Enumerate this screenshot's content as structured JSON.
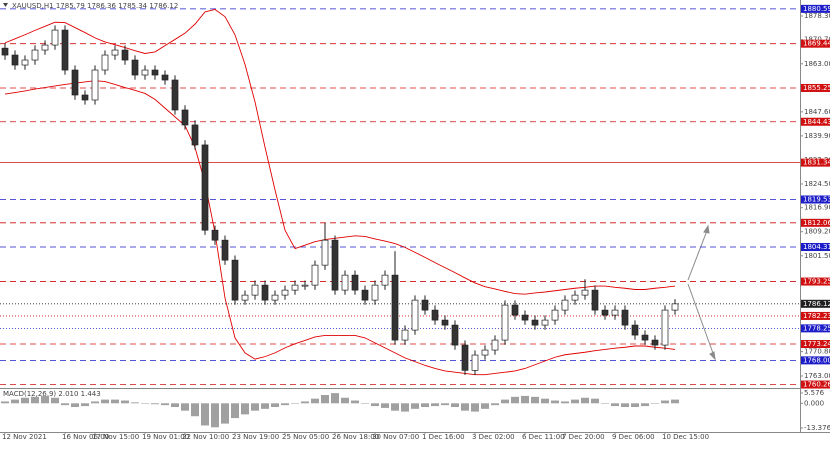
{
  "chart_data": {
    "type": "candlestick",
    "title": "XAUUSD,H1  1785.79 1786.36 1785.34 1786.12",
    "categories": [
      "12 Nov 2021",
      null,
      null,
      null,
      null,
      null,
      "16 Nov 06:00",
      null,
      null,
      "17 Nov 15:00",
      null,
      null,
      null,
      null,
      "19 Nov 01:00",
      null,
      null,
      null,
      "22 Nov 10:00",
      null,
      null,
      null,
      null,
      "23 Nov 19:00",
      null,
      null,
      null,
      null,
      "25 Nov 05:00",
      null,
      null,
      null,
      null,
      "26 Nov 18:00",
      null,
      null,
      null,
      "30 Nov 07:00",
      null,
      null,
      null,
      null,
      "1 Dec 16:00",
      null,
      null,
      null,
      null,
      "3 Dec 02:00",
      null,
      null,
      null,
      null,
      "6 Dec 11:00",
      null,
      null,
      null,
      "7 Dec 20:00",
      null,
      null,
      null,
      null,
      "9 Dec 06:00",
      null,
      null,
      null,
      null,
      "10 Dec 15:00",
      null
    ],
    "open": [
      1868.0,
      1865.8,
      1862.6,
      1864.2,
      1867.4,
      1869.0,
      1873.8,
      1861.0,
      1853.0,
      1851.4,
      1861.0,
      1865.8,
      1867.4,
      1864.2,
      1859.4,
      1861.0,
      1859.4,
      1857.8,
      1848.2,
      1843.4,
      1837.0,
      1809.7,
      1806.5,
      1800.1,
      1787.3,
      1788.9,
      1792.1,
      1787.3,
      1788.9,
      1790.5,
      1792.1,
      1792.1,
      1798.5,
      1806.5,
      1790.5,
      1795.3,
      1790.5,
      1787.3,
      1792.1,
      1795.3,
      1774.5,
      1777.7,
      1787.3,
      1784.1,
      1780.9,
      1779.3,
      1772.9,
      1764.8,
      1769.7,
      1771.3,
      1774.5,
      1785.7,
      1782.5,
      1780.9,
      1779.3,
      1780.9,
      1784.1,
      1787.3,
      1788.9,
      1790.5,
      1784.1,
      1782.5,
      1784.1,
      1779.3,
      1776.1,
      1774.5,
      1772.9,
      1784.1
    ],
    "high": [
      1869.5,
      1867.3,
      1865.7,
      1868.9,
      1870.5,
      1875.3,
      1875.3,
      1862.5,
      1854.5,
      1862.5,
      1867.3,
      1868.9,
      1868.9,
      1865.7,
      1862.5,
      1862.5,
      1860.9,
      1859.3,
      1849.7,
      1844.9,
      1838.5,
      1811.2,
      1808.0,
      1801.6,
      1790.4,
      1793.6,
      1793.6,
      1790.4,
      1792.0,
      1793.6,
      1793.6,
      1800.0,
      1812.0,
      1808.0,
      1796.8,
      1796.8,
      1792.0,
      1793.6,
      1796.8,
      1803.0,
      1779.2,
      1788.8,
      1788.8,
      1785.6,
      1782.4,
      1780.8,
      1774.4,
      1771.2,
      1772.8,
      1776.0,
      1787.2,
      1787.2,
      1784.0,
      1782.4,
      1782.4,
      1785.6,
      1788.8,
      1790.4,
      1794.0,
      1792.0,
      1785.6,
      1785.6,
      1785.6,
      1780.8,
      1777.6,
      1776.0,
      1785.6,
      1787.6
    ],
    "low": [
      1864.3,
      1861.1,
      1861.1,
      1862.7,
      1865.9,
      1867.5,
      1859.5,
      1851.5,
      1849.9,
      1849.9,
      1859.5,
      1864.3,
      1862.7,
      1857.9,
      1857.9,
      1857.9,
      1856.3,
      1846.7,
      1841.9,
      1835.5,
      1808.2,
      1805.0,
      1798.6,
      1785.8,
      1785.8,
      1787.4,
      1785.8,
      1785.8,
      1787.4,
      1789.0,
      1790.6,
      1790.6,
      1797.0,
      1789.0,
      1789.0,
      1789.0,
      1785.8,
      1785.8,
      1790.6,
      1773.0,
      1773.0,
      1776.2,
      1782.6,
      1779.4,
      1777.8,
      1771.4,
      1763.3,
      1763.3,
      1768.2,
      1769.8,
      1773.0,
      1781.0,
      1779.4,
      1777.8,
      1777.8,
      1779.4,
      1782.6,
      1785.8,
      1787.4,
      1782.6,
      1781.0,
      1781.0,
      1777.8,
      1774.6,
      1773.0,
      1771.4,
      1771.4,
      1782.6
    ],
    "close": [
      1865.8,
      1862.6,
      1864.2,
      1867.4,
      1869.0,
      1873.8,
      1861.0,
      1853.0,
      1851.4,
      1861.0,
      1865.8,
      1867.4,
      1864.2,
      1859.4,
      1861.0,
      1859.4,
      1857.8,
      1848.2,
      1843.4,
      1837.0,
      1809.7,
      1806.5,
      1800.1,
      1787.3,
      1788.9,
      1792.1,
      1787.3,
      1788.9,
      1790.5,
      1792.1,
      1792.1,
      1798.5,
      1806.5,
      1790.5,
      1795.3,
      1790.5,
      1787.3,
      1792.1,
      1795.3,
      1774.5,
      1777.7,
      1787.3,
      1784.1,
      1780.9,
      1779.3,
      1772.9,
      1764.8,
      1769.7,
      1771.3,
      1774.5,
      1785.7,
      1782.5,
      1780.9,
      1779.3,
      1780.9,
      1784.1,
      1787.3,
      1788.9,
      1790.5,
      1784.1,
      1782.5,
      1784.1,
      1779.3,
      1776.1,
      1774.5,
      1772.9,
      1784.1,
      1786.1
    ],
    "upper_band": [
      1869.7,
      1871,
      1872.3,
      1873.7,
      1875,
      1876.3,
      1876.2,
      1874.6,
      1873,
      1871.3,
      1870,
      1869.1,
      1868.2,
      1867.2,
      1866.3,
      1866.8,
      1868.8,
      1870.8,
      1872.8,
      1875.7,
      1879.6,
      1880.4,
      1878.1,
      1872.3,
      1862.8,
      1850.8,
      1836.3,
      1822.6,
      1809.7,
      1803.8,
      1804.9,
      1806,
      1806.7,
      1807.1,
      1807.5,
      1807.9,
      1807.7,
      1806.9,
      1806.2,
      1805.4,
      1804.2,
      1802.6,
      1801,
      1799.3,
      1797.7,
      1796.1,
      1794.4,
      1792.8,
      1791.6,
      1790.9,
      1790.1,
      1789.4,
      1789.2,
      1789.6,
      1789.9,
      1790.3,
      1790.7,
      1791.1,
      1791.4,
      1791.8,
      1791.8,
      1791.4,
      1791.1,
      1790.7,
      1790.7,
      1791.1,
      1791.4,
      1791.8
    ],
    "lower_band": [
      1853.3,
      1853.8,
      1854.3,
      1854.9,
      1855.4,
      1855.9,
      1856.4,
      1856.8,
      1857.2,
      1857.6,
      1857.3,
      1856.4,
      1855.4,
      1854.5,
      1853.5,
      1851.6,
      1848.8,
      1846,
      1843.2,
      1836.2,
      1824.9,
      1808.9,
      1788,
      1775.2,
      1770.4,
      1768.4,
      1769.2,
      1770.4,
      1772,
      1773.3,
      1774.4,
      1775.5,
      1776,
      1776,
      1776,
      1776,
      1775.2,
      1773.6,
      1772,
      1770.4,
      1768.8,
      1767.6,
      1766.4,
      1765.4,
      1764.6,
      1764.2,
      1763.8,
      1763.4,
      1763.4,
      1763.8,
      1764.2,
      1764.6,
      1765.4,
      1766.6,
      1767.8,
      1769,
      1769.8,
      1770.2,
      1770.6,
      1771.1,
      1771.5,
      1771.9,
      1772.2,
      1772.6,
      1772.6,
      1772.2,
      1771.9,
      1771.5
    ],
    "band_color": "#e00000",
    "ylim": [
      1759.15,
      1881.83
    ],
    "yticks": [
      {
        "value": 1878.3,
        "label": "1878.30"
      },
      {
        "value": 1870.7,
        "label": "1870.70"
      },
      {
        "value": 1863.0,
        "label": "1863.00"
      },
      {
        "value": 1847.6,
        "label": "1847.60"
      },
      {
        "value": 1839.9,
        "label": "1839.90"
      },
      {
        "value": 1832.2,
        "label": "1832.20"
      },
      {
        "value": 1824.5,
        "label": "1824.50"
      },
      {
        "value": 1816.9,
        "label": "1816.90"
      },
      {
        "value": 1809.2,
        "label": "1809.20"
      },
      {
        "value": 1801.5,
        "label": "1801.50"
      },
      {
        "value": 1770.8,
        "label": "1770.80"
      },
      {
        "value": 1763.0,
        "label": "1763.00"
      }
    ],
    "levels": [
      {
        "value": 1880.59,
        "label": "1880.59",
        "color": "#1c1cc8",
        "style": "dashed"
      },
      {
        "value": 1869.44,
        "label": "1869.44",
        "color": "#d01010",
        "style": "dashed"
      },
      {
        "value": 1855.25,
        "label": "1855.25",
        "color": "#d01010",
        "style": "dashed"
      },
      {
        "value": 1844.43,
        "label": "1844.43",
        "color": "#d01010",
        "style": "dashed"
      },
      {
        "value": 1831.34,
        "label": "1831.34",
        "color": "#d01010",
        "style": "solid"
      },
      {
        "value": 1819.53,
        "label": "1819.53",
        "color": "#1c1cc8",
        "style": "dashed"
      },
      {
        "value": 1812.06,
        "label": "1812.06",
        "color": "#d01010",
        "style": "dashed"
      },
      {
        "value": 1804.31,
        "label": "1804.31",
        "color": "#1c1cc8",
        "style": "dashed"
      },
      {
        "value": 1793.25,
        "label": "1793.25",
        "color": "#d01010",
        "style": "dashed"
      },
      {
        "value": 1786.12,
        "label": "1786.12",
        "color": "#202020",
        "style": "dotted"
      },
      {
        "value": 1782.23,
        "label": "1782.23",
        "color": "#d01010",
        "style": "dotted"
      },
      {
        "value": 1778.25,
        "label": "1778.25",
        "color": "#1c1cc8",
        "style": "dotted"
      },
      {
        "value": 1773.24,
        "label": "1773.24",
        "color": "#d01010",
        "style": "dashed"
      },
      {
        "value": 1768.0,
        "label": "1768.00",
        "color": "#1c1cc8",
        "style": "dashed"
      },
      {
        "value": 1760.26,
        "label": "1760.26",
        "color": "#d01010",
        "style": "dashed"
      }
    ],
    "macd": {
      "label": "MACD(12,26,9) 2.010 1.443",
      "values": [
        1,
        2,
        3,
        3.5,
        4,
        3,
        -1,
        -2,
        -1.5,
        1,
        2,
        2,
        1.5,
        0.5,
        0,
        -0.5,
        -1,
        -2,
        -4,
        -7,
        -12,
        -13,
        -11,
        -8,
        -6,
        -4,
        -3,
        -2,
        -1,
        0,
        1,
        2.5,
        4.5,
        5.5,
        3,
        1.5,
        0,
        -1.5,
        -2.5,
        -4,
        -4.5,
        -3,
        -2,
        -1.5,
        -1,
        -2,
        -4,
        -4.5,
        -3,
        -1,
        2,
        3.5,
        4,
        3.5,
        2.5,
        1.5,
        1,
        2,
        3,
        2.5,
        0,
        -1.5,
        -2,
        -2,
        -1.5,
        0,
        1.5,
        2.01
      ],
      "color": "#a0a0a0",
      "ylim": [
        -13.376,
        5.576
      ],
      "yticks": [
        5.576,
        {
          "value": 0,
          "label": "0.000"
        },
        -13.376
      ]
    }
  }
}
